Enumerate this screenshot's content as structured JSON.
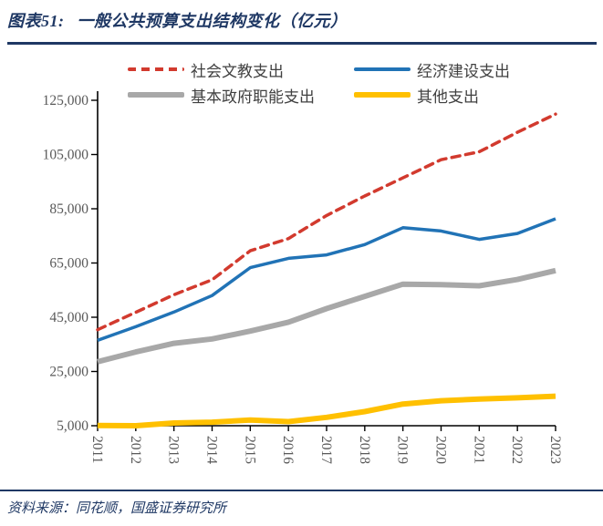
{
  "header": {
    "figure_label": "图表51:",
    "title": "一般公共预算支出结构变化（亿元）"
  },
  "source": {
    "text": "资料来源：同花顺，国盛证券研究所"
  },
  "colors": {
    "accent_navy": "#1f3864",
    "axis_line": "#000000",
    "tick_label": "#595959",
    "legend_text": "#404040",
    "series_red": "#d23a2e",
    "series_blue": "#2173b6",
    "series_gray": "#a8a8a8",
    "series_yellow": "#ffc000"
  },
  "chart_data": {
    "type": "line",
    "title": "一般公共预算支出结构变化（亿元）",
    "xlabel": "",
    "ylabel": "",
    "grid": false,
    "legend_position": "top",
    "categories": [
      "2011",
      "2012",
      "2013",
      "2014",
      "2015",
      "2016",
      "2017",
      "2018",
      "2019",
      "2020",
      "2021",
      "2022",
      "2023"
    ],
    "ylim": [
      5000,
      125000
    ],
    "yticks": [
      5000,
      25000,
      45000,
      65000,
      85000,
      105000,
      125000
    ],
    "ytick_labels": [
      "5,000",
      "25,000",
      "45,000",
      "65,000",
      "85,000",
      "105,000",
      "125,000"
    ],
    "series": [
      {
        "name": "社会文教支出",
        "color": "#d23a2e",
        "style": "dashed",
        "width": 3.5,
        "values": [
          40400,
          46800,
          53300,
          58800,
          69500,
          74000,
          82500,
          89700,
          96400,
          103100,
          106000,
          113200,
          119900
        ]
      },
      {
        "name": "经济建设支出",
        "color": "#2173b6",
        "style": "solid",
        "width": 3.5,
        "values": [
          36500,
          41500,
          46900,
          53000,
          63300,
          66700,
          68000,
          71800,
          78000,
          76800,
          73700,
          75900,
          81300
        ]
      },
      {
        "name": "基本政府职能支出",
        "color": "#a8a8a8",
        "style": "solid",
        "width": 6,
        "values": [
          28600,
          32200,
          35400,
          37000,
          39900,
          43200,
          48200,
          52700,
          57200,
          57000,
          56600,
          58900,
          62200
        ]
      },
      {
        "name": "其他支出",
        "color": "#ffc000",
        "style": "solid",
        "width": 6,
        "values": [
          5100,
          5000,
          6000,
          6300,
          7100,
          6500,
          8100,
          10200,
          13000,
          14200,
          14800,
          15300,
          15900
        ]
      }
    ]
  }
}
